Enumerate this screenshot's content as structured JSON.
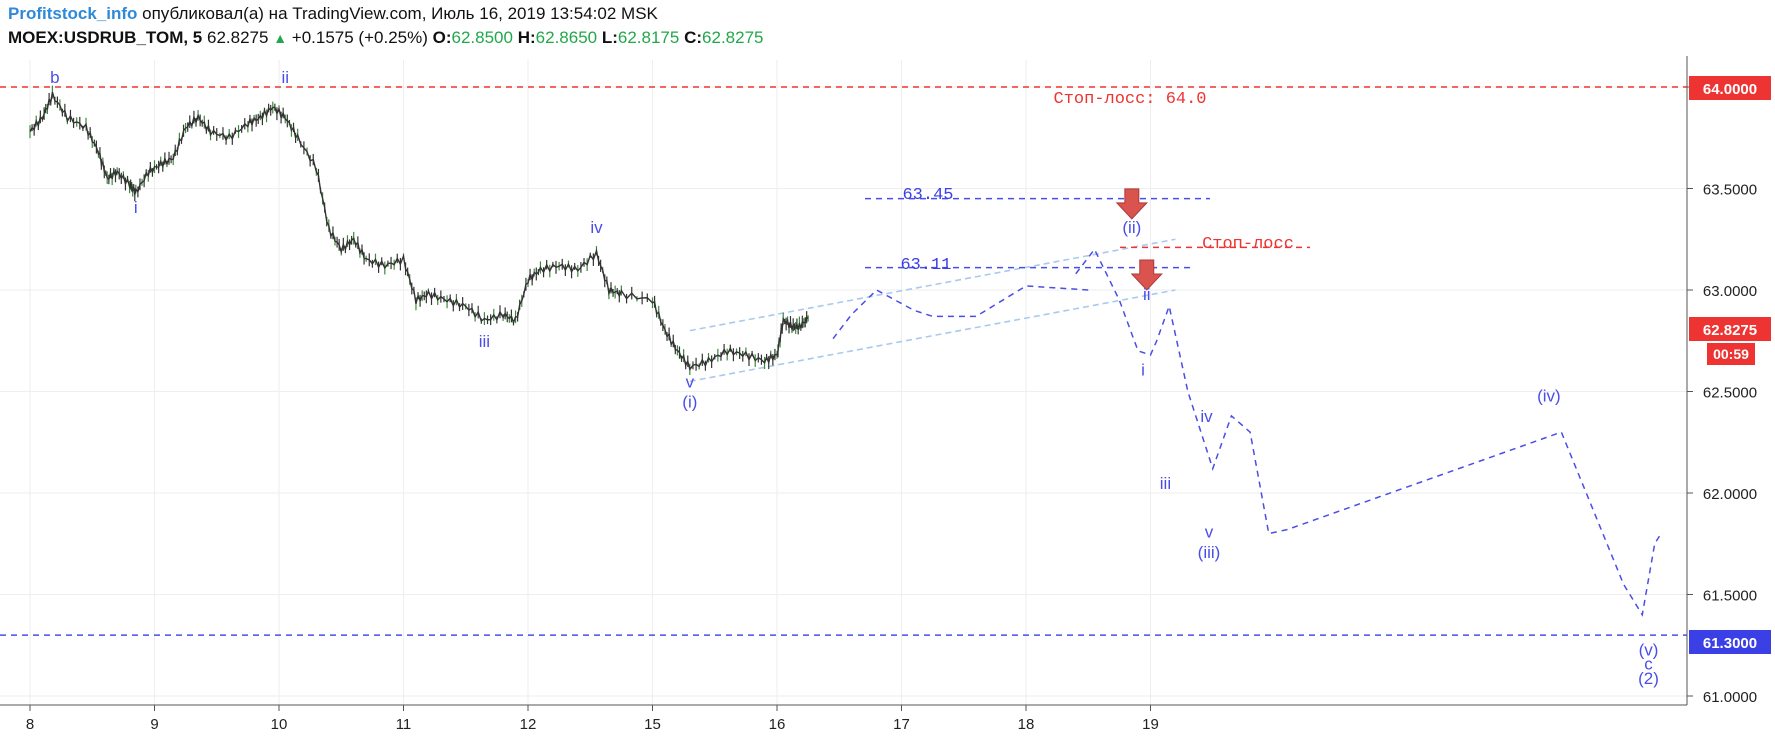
{
  "header": {
    "author": "Profitstock_info",
    "published_text": "опубликовал(а) на TradingView.com, Июль 16, 2019 13:54:02 MSK",
    "symbol": "MOEX:USDRUB_TOM, 5",
    "last": "62.8275",
    "change": "+0.1575 (+0.25%)",
    "open_label": "O:",
    "open": "62.8500",
    "high_label": "H:",
    "high": "62.8650",
    "low_label": "L:",
    "low": "62.8175",
    "close_label": "C:",
    "close": "62.8275"
  },
  "colors": {
    "candles": "#333333",
    "wave": "#4a4ee8",
    "channel": "#a9c9ee",
    "stop": "#ee3333",
    "grid": "#eeeeee",
    "arrow": "#d9534f"
  },
  "chart_data": {
    "type": "line",
    "title": "",
    "xlabel": "",
    "ylabel": "",
    "x_ticks": [
      "8",
      "9",
      "10",
      "11",
      "12",
      "15",
      "16",
      "17",
      "18",
      "19"
    ],
    "y_ticks": [
      "64.0000",
      "63.5000",
      "63.0000",
      "62.5000",
      "62.0000",
      "61.5000",
      "61.0000"
    ],
    "ylim": [
      61.0,
      64.1
    ],
    "price_labels": {
      "stop_level": "64.0000",
      "last_price": "62.8275",
      "timer": "00:59",
      "target_level": "61.3000"
    },
    "price_series": {
      "name": "USDRUB_TOM",
      "points": [
        [
          0.0,
          63.78
        ],
        [
          0.1,
          63.85
        ],
        [
          0.18,
          63.96
        ],
        [
          0.3,
          63.85
        ],
        [
          0.45,
          63.8
        ],
        [
          0.55,
          63.68
        ],
        [
          0.62,
          63.55
        ],
        [
          0.7,
          63.58
        ],
        [
          0.8,
          63.52
        ],
        [
          0.85,
          63.48
        ],
        [
          0.95,
          63.58
        ],
        [
          1.05,
          63.62
        ],
        [
          1.15,
          63.65
        ],
        [
          1.25,
          63.8
        ],
        [
          1.35,
          63.85
        ],
        [
          1.45,
          63.78
        ],
        [
          1.6,
          63.75
        ],
        [
          1.75,
          63.82
        ],
        [
          1.85,
          63.85
        ],
        [
          1.95,
          63.9
        ],
        [
          2.05,
          63.85
        ],
        [
          2.15,
          63.75
        ],
        [
          2.3,
          63.6
        ],
        [
          2.4,
          63.3
        ],
        [
          2.5,
          63.2
        ],
        [
          2.6,
          63.25
        ],
        [
          2.7,
          63.15
        ],
        [
          2.85,
          63.12
        ],
        [
          3.0,
          63.15
        ],
        [
          3.1,
          62.95
        ],
        [
          3.2,
          62.98
        ],
        [
          3.35,
          62.95
        ],
        [
          3.5,
          62.92
        ],
        [
          3.65,
          62.85
        ],
        [
          3.8,
          62.88
        ],
        [
          3.9,
          62.85
        ],
        [
          4.0,
          63.05
        ],
        [
          4.1,
          63.1
        ],
        [
          4.25,
          63.12
        ],
        [
          4.4,
          63.1
        ],
        [
          4.55,
          63.18
        ],
        [
          4.65,
          63.0
        ],
        [
          4.75,
          62.98
        ],
        [
          5.0,
          62.95
        ],
        [
          5.1,
          62.8
        ],
        [
          5.2,
          62.7
        ],
        [
          5.3,
          62.62
        ],
        [
          5.45,
          62.65
        ],
        [
          5.6,
          62.7
        ],
        [
          5.75,
          62.68
        ],
        [
          5.9,
          62.65
        ],
        [
          6.0,
          62.68
        ],
        [
          6.05,
          62.85
        ],
        [
          6.12,
          62.82
        ],
        [
          6.18,
          62.82
        ],
        [
          6.25,
          62.86
        ]
      ]
    },
    "series": [
      {
        "points": [
          [
            6.45,
            62.76
          ],
          [
            6.6,
            62.88
          ],
          [
            6.8,
            63.0
          ],
          [
            6.95,
            62.95
          ],
          [
            7.1,
            62.9
          ],
          [
            7.25,
            62.87
          ],
          [
            7.6,
            62.87
          ],
          [
            8.0,
            63.02
          ],
          [
            8.5,
            63.0
          ]
        ]
      },
      {
        "points": [
          [
            8.4,
            63.08
          ],
          [
            8.55,
            63.2
          ],
          [
            8.75,
            62.95
          ],
          [
            8.9,
            62.7
          ],
          [
            9.0,
            62.68
          ],
          [
            9.05,
            62.75
          ],
          [
            9.15,
            62.92
          ],
          [
            9.3,
            62.5
          ],
          [
            9.5,
            62.12
          ],
          [
            9.65,
            62.38
          ],
          [
            9.8,
            62.3
          ],
          [
            9.95,
            61.8
          ],
          [
            10.1,
            61.82
          ],
          [
            12.3,
            62.3
          ],
          [
            12.5,
            62.0
          ],
          [
            12.8,
            61.55
          ],
          [
            12.95,
            61.4
          ],
          [
            13.05,
            61.75
          ],
          [
            13.1,
            61.8
          ]
        ]
      }
    ],
    "levels": [
      {
        "name": "Стоп-лосс: 64.0",
        "value": 64.0,
        "color": "stop"
      },
      {
        "name": "63.45",
        "value": 63.45,
        "color": "wave"
      },
      {
        "name": "63.11",
        "value": 63.11,
        "color": "wave"
      },
      {
        "name": "Стоп-лосс",
        "value": 63.21,
        "color": "stop"
      },
      {
        "name": "",
        "value": 61.3,
        "color": "wave"
      }
    ],
    "channel": [
      {
        "from": [
          5.3,
          62.8
        ],
        "to": [
          9.2,
          63.25
        ]
      },
      {
        "from": [
          5.3,
          62.55
        ],
        "to": [
          9.2,
          63.0
        ]
      }
    ],
    "annotations": [
      {
        "text": "b",
        "x": 0.2,
        "y": 64.02
      },
      {
        "text": "ii",
        "x": 2.05,
        "y": 64.02
      },
      {
        "text": "i",
        "x": 0.85,
        "y": 63.38
      },
      {
        "text": "iv",
        "x": 4.55,
        "y": 63.28
      },
      {
        "text": "iii",
        "x": 3.65,
        "y": 62.72
      },
      {
        "text": "v",
        "x": 5.3,
        "y": 62.52
      },
      {
        "text": "(i)",
        "x": 5.3,
        "y": 62.42
      },
      {
        "text": "(ii)",
        "x": 8.85,
        "y": 63.28
      },
      {
        "text": "ii",
        "x": 8.97,
        "y": 62.95
      },
      {
        "text": "i",
        "x": 8.94,
        "y": 62.58
      },
      {
        "text": "iv",
        "x": 9.45,
        "y": 62.35
      },
      {
        "text": "iii",
        "x": 9.12,
        "y": 62.02
      },
      {
        "text": "v",
        "x": 9.47,
        "y": 61.78
      },
      {
        "text": "(iii)",
        "x": 9.47,
        "y": 61.68
      },
      {
        "text": "(iv)",
        "x": 12.2,
        "y": 62.45
      },
      {
        "text": "(v)",
        "x": 13.0,
        "y": 61.2
      },
      {
        "text": "c",
        "x": 13.0,
        "y": 61.13
      },
      {
        "text": "(2)",
        "x": 13.0,
        "y": 61.06
      }
    ]
  }
}
